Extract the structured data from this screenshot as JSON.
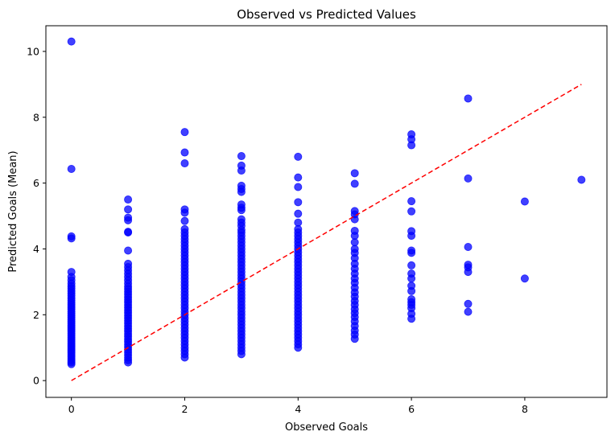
{
  "chart_data": {
    "type": "scatter",
    "title": "Observed vs Predicted Values",
    "xlabel": "Observed Goals",
    "ylabel": "Predicted Goals (Mean)",
    "xlim": [
      -0.45,
      9.45
    ],
    "ylim": [
      -0.51,
      10.78
    ],
    "xticks": [
      0,
      2,
      4,
      6,
      8
    ],
    "yticks": [
      0,
      2,
      4,
      6,
      8,
      10
    ],
    "grid": false,
    "point_color": "#0000ff",
    "point_opacity": 0.75,
    "reference_line": {
      "style": "dashed",
      "color": "#ff0000",
      "from": [
        0,
        0
      ],
      "to": [
        9,
        9
      ]
    },
    "series": [
      {
        "observed": 0,
        "predicted": [
          10.3,
          6.43,
          4.38,
          4.32,
          3.3,
          3.15,
          3.05,
          2.95,
          2.87,
          2.8,
          2.72,
          2.65,
          2.58,
          2.5,
          2.43,
          2.36,
          2.3,
          2.23,
          2.17,
          2.1,
          2.04,
          1.98,
          1.92,
          1.86,
          1.8,
          1.74,
          1.68,
          1.62,
          1.56,
          1.5,
          1.44,
          1.38,
          1.32,
          1.26,
          1.2,
          1.14,
          1.08,
          1.02,
          0.96,
          0.9,
          0.84,
          0.78,
          0.72,
          0.66,
          0.6,
          0.55,
          0.5
        ]
      },
      {
        "observed": 1,
        "predicted": [
          5.5,
          5.2,
          4.95,
          4.87,
          4.52,
          4.5,
          3.95,
          3.55,
          3.45,
          3.35,
          3.25,
          3.15,
          3.05,
          2.95,
          2.86,
          2.78,
          2.7,
          2.62,
          2.54,
          2.46,
          2.38,
          2.3,
          2.22,
          2.14,
          2.06,
          1.98,
          1.9,
          1.82,
          1.74,
          1.66,
          1.58,
          1.5,
          1.42,
          1.34,
          1.26,
          1.18,
          1.1,
          1.02,
          0.94,
          0.86,
          0.78,
          0.7,
          0.62,
          0.55
        ]
      },
      {
        "observed": 2,
        "predicted": [
          7.55,
          6.93,
          6.6,
          5.2,
          5.1,
          4.85,
          4.6,
          4.5,
          4.4,
          4.3,
          4.2,
          4.1,
          4.0,
          3.9,
          3.8,
          3.7,
          3.6,
          3.5,
          3.4,
          3.3,
          3.2,
          3.1,
          3.0,
          2.9,
          2.8,
          2.7,
          2.6,
          2.5,
          2.4,
          2.3,
          2.2,
          2.1,
          2.0,
          1.9,
          1.8,
          1.7,
          1.6,
          1.5,
          1.4,
          1.3,
          1.2,
          1.1,
          1.0,
          0.9,
          0.8,
          0.7
        ]
      },
      {
        "observed": 3,
        "predicted": [
          6.82,
          6.53,
          6.38,
          5.92,
          5.82,
          5.73,
          5.35,
          5.25,
          5.18,
          4.9,
          4.8,
          4.7,
          4.58,
          4.5,
          4.4,
          4.3,
          4.2,
          4.1,
          4.0,
          3.9,
          3.8,
          3.7,
          3.6,
          3.5,
          3.4,
          3.3,
          3.2,
          3.1,
          3.0,
          2.9,
          2.8,
          2.7,
          2.6,
          2.5,
          2.4,
          2.3,
          2.2,
          2.1,
          2.0,
          1.9,
          1.8,
          1.7,
          1.6,
          1.5,
          1.4,
          1.3,
          1.2,
          1.1,
          1.0,
          0.9,
          0.8
        ]
      },
      {
        "observed": 4,
        "predicted": [
          6.8,
          6.17,
          5.88,
          5.42,
          5.07,
          4.8,
          4.6,
          4.5,
          4.4,
          4.3,
          4.2,
          4.1,
          4.0,
          3.9,
          3.8,
          3.7,
          3.6,
          3.5,
          3.4,
          3.3,
          3.2,
          3.1,
          3.0,
          2.9,
          2.8,
          2.7,
          2.6,
          2.5,
          2.4,
          2.3,
          2.2,
          2.1,
          2.0,
          1.9,
          1.8,
          1.7,
          1.6,
          1.5,
          1.4,
          1.3,
          1.2,
          1.1,
          1.0
        ]
      },
      {
        "observed": 5,
        "predicted": [
          6.3,
          5.98,
          5.15,
          5.05,
          4.9,
          4.55,
          4.4,
          4.2,
          4.0,
          3.88,
          3.72,
          3.55,
          3.4,
          3.25,
          3.1,
          2.97,
          2.82,
          2.68,
          2.55,
          2.42,
          2.3,
          2.17,
          2.05,
          1.93,
          1.8,
          1.66,
          1.52,
          1.4,
          1.27
        ]
      },
      {
        "observed": 6,
        "predicted": [
          7.48,
          7.33,
          7.15,
          5.45,
          5.14,
          4.54,
          4.4,
          3.95,
          3.88,
          3.5,
          3.25,
          3.1,
          2.88,
          2.72,
          2.47,
          2.38,
          2.3,
          2.2,
          2.03,
          1.88
        ]
      },
      {
        "observed": 7,
        "predicted": [
          8.57,
          6.14,
          4.06,
          3.52,
          3.44,
          3.3,
          2.33,
          2.09
        ]
      },
      {
        "observed": 8,
        "predicted": [
          5.44,
          3.1
        ]
      },
      {
        "observed": 9,
        "predicted": [
          6.1
        ]
      }
    ]
  }
}
